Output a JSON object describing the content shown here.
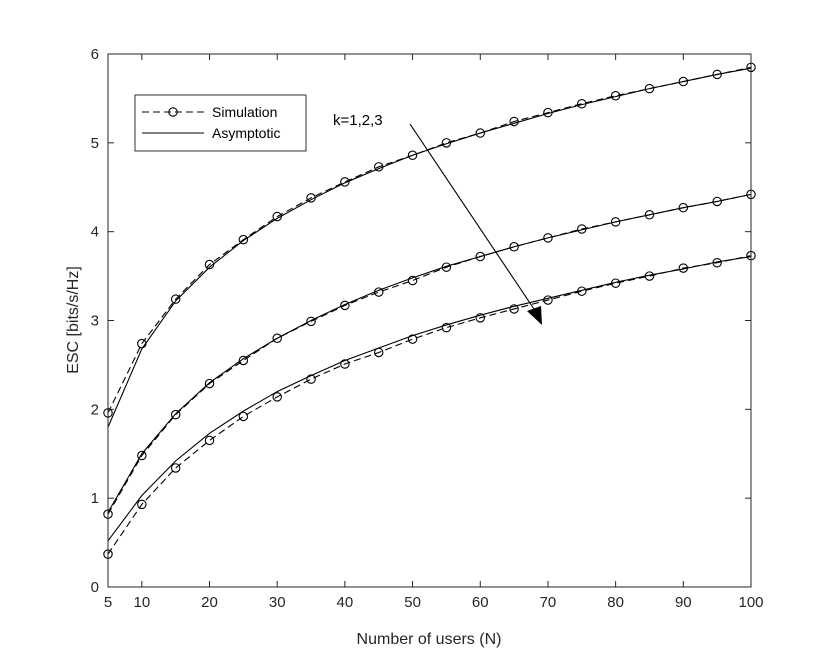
{
  "chart_data": {
    "type": "line",
    "xlabel": "Number of users (N)",
    "ylabel": "ESC [bits/s/Hz]",
    "xlim": [
      5,
      100
    ],
    "ylim": [
      0,
      6
    ],
    "xticks": [
      5,
      10,
      20,
      30,
      40,
      50,
      60,
      70,
      80,
      90,
      100
    ],
    "yticks": [
      0,
      1,
      2,
      3,
      4,
      5,
      6
    ],
    "grid": false,
    "legend": {
      "placement": "top-left",
      "entries": [
        "Simulation",
        "Asymptotic"
      ]
    },
    "annotation": {
      "text": "k=1,2,3"
    },
    "x": [
      5,
      10,
      15,
      20,
      25,
      30,
      35,
      40,
      45,
      50,
      55,
      60,
      65,
      70,
      75,
      80,
      85,
      90,
      95,
      100
    ],
    "series": [
      {
        "name": "Simulation",
        "group": "k=1",
        "style": "dashed-circle",
        "values": [
          1.96,
          2.74,
          3.24,
          3.63,
          3.91,
          4.17,
          4.38,
          4.56,
          4.73,
          4.86,
          5.0,
          5.11,
          5.24,
          5.34,
          5.44,
          5.53,
          5.61,
          5.69,
          5.77,
          5.85
        ]
      },
      {
        "name": "Asymptotic",
        "group": "k=1",
        "style": "solid",
        "values": [
          1.8,
          2.68,
          3.22,
          3.6,
          3.9,
          4.15,
          4.36,
          4.55,
          4.71,
          4.86,
          4.99,
          5.11,
          5.22,
          5.33,
          5.43,
          5.52,
          5.61,
          5.69,
          5.77,
          5.84
        ]
      },
      {
        "name": "Simulation",
        "group": "k=2",
        "style": "dashed-circle",
        "values": [
          0.82,
          1.48,
          1.94,
          2.29,
          2.55,
          2.8,
          2.99,
          3.17,
          3.32,
          3.45,
          3.6,
          3.72,
          3.83,
          3.93,
          4.03,
          4.11,
          4.19,
          4.27,
          4.34,
          4.42
        ]
      },
      {
        "name": "Asymptotic",
        "group": "k=2",
        "style": "solid",
        "values": [
          0.84,
          1.5,
          1.95,
          2.3,
          2.57,
          2.8,
          3.0,
          3.18,
          3.34,
          3.48,
          3.61,
          3.72,
          3.83,
          3.93,
          4.02,
          4.11,
          4.19,
          4.27,
          4.34,
          4.42
        ]
      },
      {
        "name": "Simulation",
        "group": "k=3",
        "style": "dashed-circle",
        "values": [
          0.37,
          0.93,
          1.34,
          1.65,
          1.92,
          2.14,
          2.34,
          2.51,
          2.64,
          2.79,
          2.92,
          3.03,
          3.13,
          3.23,
          3.33,
          3.42,
          3.5,
          3.59,
          3.65,
          3.73
        ]
      },
      {
        "name": "Asymptotic",
        "group": "k=3",
        "style": "solid",
        "values": [
          0.52,
          1.03,
          1.42,
          1.73,
          1.98,
          2.2,
          2.38,
          2.55,
          2.69,
          2.83,
          2.95,
          3.06,
          3.16,
          3.25,
          3.34,
          3.43,
          3.51,
          3.58,
          3.66,
          3.72
        ]
      }
    ]
  }
}
